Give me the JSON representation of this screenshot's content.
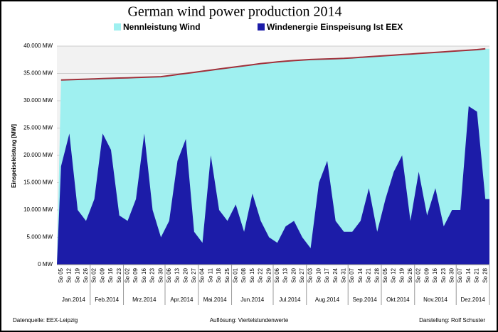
{
  "chart_data": {
    "type": "area",
    "title": "German wind power production 2014",
    "y_label": "Einspeiseleistung  [MW]",
    "categories": [
      "So 05",
      "So 12",
      "So 19",
      "So 26",
      "So 02",
      "So 09",
      "So 16",
      "So 23",
      "So 02",
      "So 09",
      "So 16",
      "So 23",
      "So 30",
      "So 06",
      "So 13",
      "So 20",
      "So 27",
      "So 04",
      "So 11",
      "So 18",
      "So 25",
      "So 01",
      "So 08",
      "So 15",
      "So 22",
      "So 29",
      "So 06",
      "So 13",
      "So 20",
      "So 27",
      "So 03",
      "So 10",
      "So 17",
      "So 24",
      "So 31",
      "So 07",
      "So 14",
      "So 21",
      "So 28",
      "So 05",
      "So 12",
      "So 19",
      "So 26",
      "So 02",
      "So 09",
      "So 16",
      "So 23",
      "So 30",
      "So 07",
      "So 14",
      "So 21",
      "So 28"
    ],
    "months": [
      "Jan.2014",
      "Feb.2014",
      "Mrz.2014",
      "Apr.2014",
      "Mai.2014",
      "Jun.2014",
      "Jul.2014",
      "Aug.2014",
      "Sep.2014",
      "Okt.2014",
      "Nov.2014",
      "Dez.2014"
    ],
    "series": [
      {
        "name": "Nennleistung Wind",
        "color": "#9ff0f0",
        "line_color": "#a0303a",
        "values": [
          33800,
          33850,
          33900,
          33950,
          34000,
          34050,
          34100,
          34150,
          34200,
          34250,
          34300,
          34350,
          34400,
          34600,
          34800,
          35000,
          35200,
          35400,
          35600,
          35800,
          36000,
          36200,
          36400,
          36600,
          36800,
          36950,
          37100,
          37250,
          37350,
          37450,
          37550,
          37600,
          37650,
          37700,
          37750,
          37850,
          37950,
          38050,
          38150,
          38250,
          38350,
          38450,
          38550,
          38650,
          38750,
          38850,
          38950,
          39050,
          39150,
          39250,
          39350,
          39500
        ]
      },
      {
        "name": "Windenergie Einspeisung Ist EEX",
        "color": "#1c1ca8",
        "values": [
          18000,
          24000,
          10000,
          8000,
          12000,
          24000,
          21000,
          9000,
          8000,
          12000,
          24000,
          10000,
          5000,
          8000,
          19000,
          23000,
          6000,
          4000,
          20000,
          10000,
          8000,
          11000,
          6000,
          13000,
          8000,
          5000,
          4000,
          7000,
          8000,
          5000,
          3000,
          15000,
          19000,
          8000,
          6000,
          6000,
          8000,
          14000,
          6000,
          12000,
          17000,
          20000,
          8000,
          17000,
          9000,
          14000,
          7000,
          10000,
          10000,
          29000,
          28000,
          12000
        ]
      }
    ],
    "ylim": [
      0,
      40000
    ],
    "yticks": [
      {
        "value": 0,
        "label": "0 MW"
      },
      {
        "value": 5000,
        "label": "5.000 MW"
      },
      {
        "value": 10000,
        "label": "10.000 MW"
      },
      {
        "value": 15000,
        "label": "15.000 MW"
      },
      {
        "value": 20000,
        "label": "20.000 MW"
      },
      {
        "value": 25000,
        "label": "25.000 MW"
      },
      {
        "value": 30000,
        "label": "30.000 MW"
      },
      {
        "value": 35000,
        "label": "35.000 MW"
      },
      {
        "value": 40000,
        "label": "40.000 MW"
      }
    ],
    "grid": true,
    "footer": [
      "Datenquelle: EEX-Leipzig",
      "Auflösung: Viertelstundenwerte",
      "Darstellung: Rolf Schuster"
    ]
  }
}
